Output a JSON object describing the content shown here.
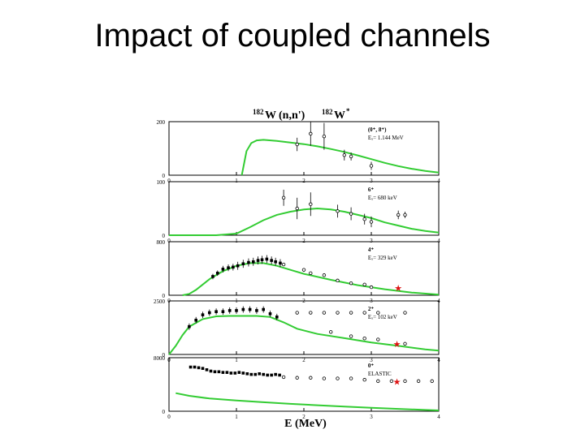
{
  "slide": {
    "title": "Impact of coupled channels"
  },
  "figure": {
    "reaction_title": "(n,n')",
    "reaction_title_target": "W",
    "reaction_title_target_mass": "182",
    "reaction_title_product": "W",
    "reaction_title_product_mass": "182",
    "reaction_title_product_star": "*",
    "xlabel": "E (MeV)",
    "curve_color": "#33cc33",
    "marker_color": "#dd1111",
    "data_color": "#000000"
  },
  "chart_data": [
    {
      "type": "scatter",
      "panel_label": "(0⁺, 8⁺)",
      "panel_sublabel": "Eₓ= 1.144 MeV",
      "xlim": [
        0,
        4
      ],
      "ylim": [
        0,
        200
      ],
      "xticks": [
        "0",
        "1",
        "2",
        "3",
        "4"
      ],
      "yticks": [
        "0",
        "200"
      ],
      "series": [
        {
          "kind": "calculation",
          "x": [
            1.08,
            1.15,
            1.22,
            1.3,
            1.4,
            1.6,
            1.8,
            2.0,
            2.2,
            2.4,
            2.6,
            2.8,
            3.0,
            3.2,
            3.4,
            3.6,
            3.8,
            4.0
          ],
          "y": [
            0,
            90,
            120,
            130,
            132,
            128,
            122,
            116,
            108,
            98,
            87,
            74,
            60,
            46,
            34,
            24,
            16,
            10
          ]
        },
        {
          "kind": "measurement",
          "x": [
            1.9,
            2.1,
            2.3,
            2.6,
            2.7,
            3.0
          ],
          "y": [
            115,
            155,
            145,
            75,
            70,
            35
          ],
          "err": [
            25,
            45,
            50,
            20,
            15,
            15
          ]
        }
      ],
      "stars": []
    },
    {
      "type": "scatter",
      "panel_label": "6⁺",
      "panel_sublabel": "Eₓ= 680 keV",
      "xlim": [
        0,
        4
      ],
      "ylim": [
        0,
        100
      ],
      "xticks": [
        "0",
        "1",
        "2",
        "3",
        "4"
      ],
      "yticks": [
        "0",
        "100"
      ],
      "series": [
        {
          "kind": "calculation",
          "x": [
            0,
            0.7,
            1.0,
            1.2,
            1.4,
            1.6,
            1.8,
            2.0,
            2.2,
            2.4,
            2.6,
            2.8,
            3.0,
            3.2,
            3.4,
            3.6,
            3.8,
            4.0
          ],
          "y": [
            0,
            0,
            3,
            15,
            28,
            38,
            44,
            48,
            50,
            48,
            44,
            38,
            32,
            24,
            18,
            12,
            8,
            5
          ]
        },
        {
          "kind": "measurement",
          "x": [
            1.7,
            1.9,
            2.1,
            2.5,
            2.7,
            2.9,
            3.0,
            3.4,
            3.5
          ],
          "y": [
            70,
            50,
            58,
            45,
            40,
            30,
            25,
            38,
            38
          ],
          "err": [
            15,
            20,
            22,
            12,
            12,
            10,
            10,
            8,
            6
          ]
        }
      ],
      "stars": []
    },
    {
      "type": "scatter",
      "panel_label": "4⁺",
      "panel_sublabel": "Eₓ= 329 keV",
      "xlim": [
        0,
        4
      ],
      "ylim": [
        0,
        800
      ],
      "xticks": [
        "0",
        "1",
        "2",
        "3",
        "4"
      ],
      "yticks": [
        "0",
        "800"
      ],
      "series": [
        {
          "kind": "calculation",
          "x": [
            0.2,
            0.3,
            0.4,
            0.5,
            0.6,
            0.8,
            1.0,
            1.2,
            1.4,
            1.6,
            1.8,
            2.0,
            2.4,
            2.8,
            3.2,
            3.6,
            4.0
          ],
          "y": [
            0,
            20,
            80,
            160,
            240,
            360,
            440,
            480,
            480,
            440,
            380,
            320,
            230,
            150,
            90,
            40,
            10
          ]
        },
        {
          "kind": "measurement",
          "x": [
            0.65,
            0.72,
            0.8,
            0.88,
            0.95,
            1.02,
            1.1,
            1.18,
            1.25,
            1.32,
            1.38,
            1.45,
            1.52,
            1.58,
            1.65
          ],
          "y": [
            280,
            330,
            390,
            410,
            420,
            440,
            470,
            490,
            500,
            520,
            530,
            540,
            520,
            500,
            480
          ],
          "err": [
            40,
            40,
            50,
            50,
            50,
            60,
            60,
            60,
            60,
            60,
            60,
            60,
            60,
            60,
            60
          ],
          "filled": true
        },
        {
          "kind": "measurement",
          "x": [
            1.7,
            2.0,
            2.1,
            2.3,
            2.5,
            2.7,
            2.9,
            3.0
          ],
          "y": [
            460,
            380,
            330,
            300,
            220,
            180,
            160,
            120
          ],
          "err": [
            20,
            20,
            20,
            20,
            15,
            15,
            15,
            15
          ]
        }
      ],
      "stars": [
        {
          "x": 3.4,
          "y": 110
        }
      ]
    },
    {
      "type": "scatter",
      "panel_label": "2⁺",
      "panel_sublabel": "Eₓ= 102 keV",
      "xlim": [
        0,
        4
      ],
      "ylim": [
        0,
        2500
      ],
      "xticks": [
        "0",
        "1",
        "2",
        "3",
        "4"
      ],
      "yticks": [
        "0",
        "2500"
      ],
      "series": [
        {
          "kind": "calculation",
          "x": [
            0,
            0.1,
            0.2,
            0.3,
            0.5,
            0.7,
            0.9,
            1.1,
            1.3,
            1.5,
            1.7,
            1.9,
            2.2,
            2.6,
            3.0,
            3.4,
            3.8,
            4.0
          ],
          "y": [
            0,
            400,
            900,
            1300,
            1650,
            1780,
            1800,
            1800,
            1800,
            1750,
            1500,
            1200,
            960,
            760,
            560,
            400,
            240,
            180
          ]
        },
        {
          "kind": "measurement",
          "x": [
            0.3,
            0.4,
            0.5,
            0.6,
            0.7,
            0.8,
            0.9,
            1.0,
            1.1,
            1.2,
            1.3,
            1.4,
            1.5,
            1.6
          ],
          "y": [
            1300,
            1600,
            1850,
            1950,
            2000,
            2000,
            2050,
            2050,
            2100,
            2100,
            2050,
            2100,
            1900,
            1750
          ],
          "err": [
            150,
            150,
            150,
            150,
            150,
            150,
            150,
            150,
            150,
            150,
            150,
            150,
            150,
            150
          ],
          "filled": true
        },
        {
          "kind": "measurement",
          "x": [
            1.9,
            2.1,
            2.3,
            2.5,
            2.7,
            2.9,
            3.1,
            3.5
          ],
          "y": [
            1950,
            1950,
            1950,
            1950,
            1950,
            1950,
            1950,
            1950
          ],
          "err": [
            0,
            0,
            0,
            0,
            0,
            0,
            0,
            0
          ]
        },
        {
          "kind": "measurement",
          "x": [
            2.4,
            2.7,
            2.9,
            3.1,
            3.5
          ],
          "y": [
            1050,
            850,
            750,
            700,
            500
          ],
          "err": [
            0,
            0,
            0,
            0,
            0
          ]
        }
      ],
      "stars": [
        {
          "x": 3.38,
          "y": 500
        }
      ]
    },
    {
      "type": "scatter",
      "panel_label": "0⁺",
      "panel_sublabel": "ELASTIC",
      "xlim": [
        0,
        4
      ],
      "ylim": [
        0,
        8000
      ],
      "xticks": [
        "0",
        "1",
        "2",
        "3",
        "4"
      ],
      "yticks": [
        "0",
        "8000"
      ],
      "series": [
        {
          "kind": "calculation",
          "x": [
            0.1,
            0.3,
            0.6,
            1.0,
            1.4,
            1.8,
            2.2,
            2.6,
            3.0,
            3.4,
            3.8,
            4.0
          ],
          "y": [
            2700,
            2300,
            1900,
            1600,
            1350,
            1100,
            900,
            700,
            520,
            350,
            200,
            120
          ]
        },
        {
          "kind": "measurement",
          "x": [
            0.32,
            0.38,
            0.44,
            0.5,
            0.56,
            0.62,
            0.68,
            0.74,
            0.8,
            0.86,
            0.92,
            0.98,
            1.04,
            1.1,
            1.16,
            1.22,
            1.28,
            1.34,
            1.4,
            1.46,
            1.52,
            1.58,
            1.64
          ],
          "y": [
            6600,
            6600,
            6500,
            6400,
            6200,
            6000,
            5900,
            5900,
            5800,
            5800,
            5700,
            5700,
            5800,
            5700,
            5600,
            5500,
            5500,
            5600,
            5500,
            5400,
            5400,
            5500,
            5400
          ],
          "err": [
            0,
            0,
            0,
            0,
            0,
            0,
            0,
            0,
            0,
            0,
            0,
            0,
            0,
            0,
            0,
            0,
            0,
            0,
            0,
            0,
            0,
            0,
            0
          ],
          "filled": true
        },
        {
          "kind": "measurement",
          "x": [
            1.7,
            1.9,
            2.1,
            2.3,
            2.5,
            2.7,
            2.9,
            3.1,
            3.3,
            3.5,
            3.7,
            3.9
          ],
          "y": [
            5100,
            5000,
            5000,
            4900,
            4900,
            4900,
            4700,
            4500,
            4500,
            4500,
            4500,
            4500
          ],
          "err": [
            0,
            0,
            0,
            0,
            0,
            0,
            0,
            0,
            0,
            0,
            0,
            0
          ]
        }
      ],
      "stars": [
        {
          "x": 3.38,
          "y": 4400
        }
      ]
    }
  ]
}
